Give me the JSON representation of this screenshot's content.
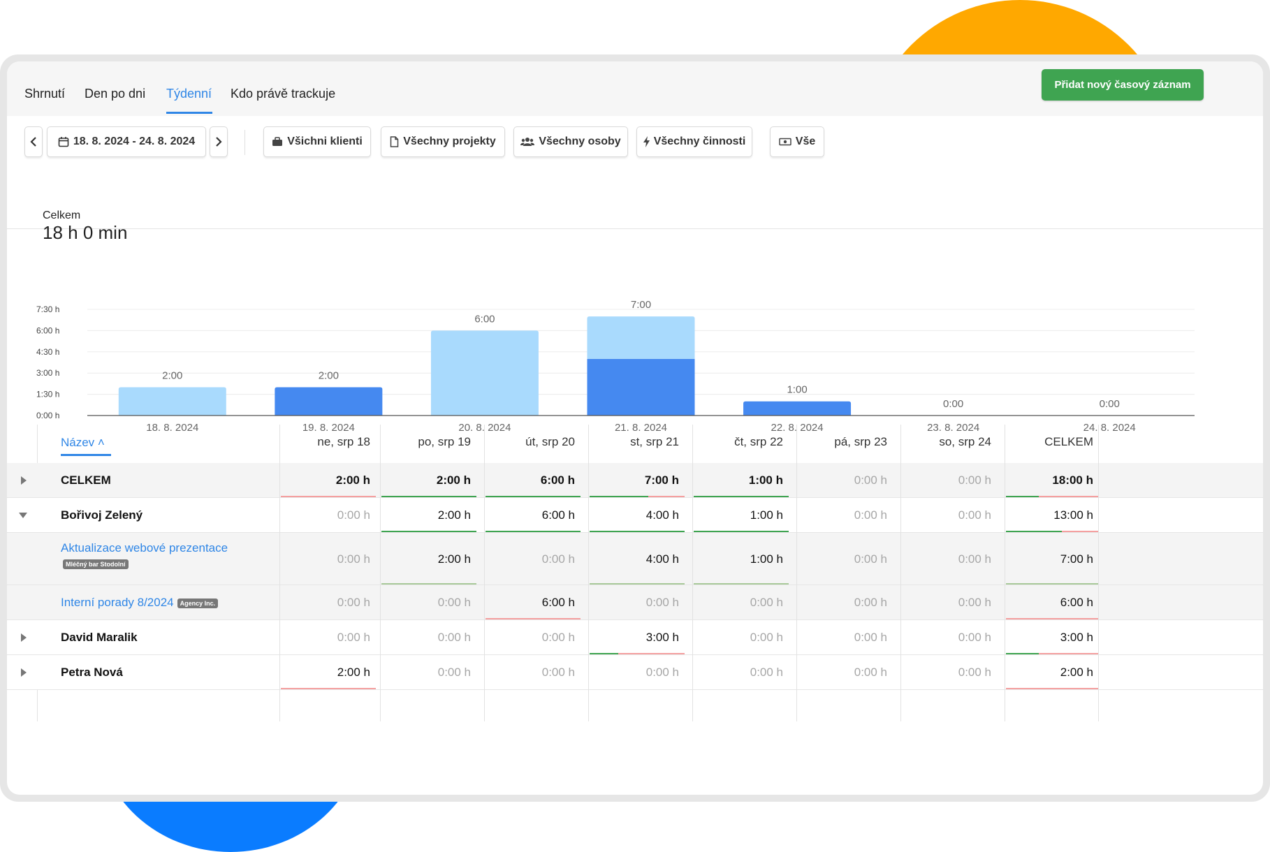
{
  "tabs": [
    {
      "label": "Shrnutí",
      "active": false
    },
    {
      "label": "Den po dni",
      "active": false
    },
    {
      "label": "Týdenní",
      "active": true
    },
    {
      "label": "Kdo právě trackuje",
      "active": false
    }
  ],
  "add_button": "Přidat nový časový záznam",
  "date_range": "18. 8. 2024 - 24. 8. 2024",
  "filters": {
    "clients": "Všichni klienti",
    "projects": "Všechny projekty",
    "people": "Všechny osoby",
    "activities": "Všechny činnosti",
    "billing": "Vše"
  },
  "total": {
    "label": "Celkem",
    "value": "18 h 0 min"
  },
  "colors": {
    "accent": "#2f86e6",
    "green": "#3fa451",
    "bar_light": "#a9dafd",
    "bar_dark": "#4589f0",
    "under_green": "#3fa451",
    "under_red": "#f4a0a0"
  },
  "chart_data": {
    "type": "bar",
    "categories": [
      "18. 8. 2024",
      "19. 8. 2024",
      "20. 8. 2024",
      "21. 8. 2024",
      "22. 8. 2024",
      "23. 8. 2024",
      "24. 8. 2024"
    ],
    "series": [
      {
        "values": [
          0,
          2,
          0,
          4,
          1,
          0,
          0
        ],
        "color": "#4589f0"
      },
      {
        "values": [
          2,
          0,
          6,
          3,
          0,
          0,
          0
        ],
        "color": "#a9dafd"
      }
    ],
    "bar_labels": [
      "2:00",
      "2:00",
      "6:00",
      "7:00",
      "1:00",
      "0:00",
      "0:00"
    ],
    "yticks": [
      "0:00 h",
      "1:30 h",
      "3:00 h",
      "4:30 h",
      "6:00 h",
      "7:30 h"
    ],
    "ytick_values": [
      0,
      1.5,
      3,
      4.5,
      6,
      7.5
    ],
    "ylim": [
      0,
      7.5
    ],
    "grid": true
  },
  "table": {
    "name_header": "Název",
    "day_headers": [
      "ne, srp 18",
      "po, srp 19",
      "út, srp 20",
      "st, srp 21",
      "čt, srp 22",
      "pá, srp 23",
      "so, srp 24"
    ],
    "total_header": "CELKEM",
    "rows": [
      {
        "name": "CELKEM",
        "cells": [
          "2:00 h",
          "2:00 h",
          "6:00 h",
          "7:00 h",
          "1:00 h",
          "0:00 h",
          "0:00 h"
        ],
        "total": "18:00 h"
      },
      {
        "name": "Bořivoj Zelený",
        "cells": [
          "0:00 h",
          "2:00 h",
          "6:00 h",
          "4:00 h",
          "1:00 h",
          "0:00 h",
          "0:00 h"
        ],
        "total": "13:00 h"
      },
      {
        "name": "Aktualizace webové prezentace",
        "tag": "Mléčný bar Stodolní",
        "cells": [
          "0:00 h",
          "2:00 h",
          "0:00 h",
          "4:00 h",
          "1:00 h",
          "0:00 h",
          "0:00 h"
        ],
        "total": "7:00 h"
      },
      {
        "name": "Interní porady 8/2024",
        "tag": "Agency Inc.",
        "cells": [
          "0:00 h",
          "0:00 h",
          "6:00 h",
          "0:00 h",
          "0:00 h",
          "0:00 h",
          "0:00 h"
        ],
        "total": "6:00 h"
      },
      {
        "name": "David Maralik",
        "cells": [
          "0:00 h",
          "0:00 h",
          "0:00 h",
          "3:00 h",
          "0:00 h",
          "0:00 h",
          "0:00 h"
        ],
        "total": "3:00 h"
      },
      {
        "name": "Petra Nová",
        "cells": [
          "2:00 h",
          "0:00 h",
          "0:00 h",
          "0:00 h",
          "0:00 h",
          "0:00 h",
          "0:00 h"
        ],
        "total": "2:00 h"
      }
    ]
  }
}
